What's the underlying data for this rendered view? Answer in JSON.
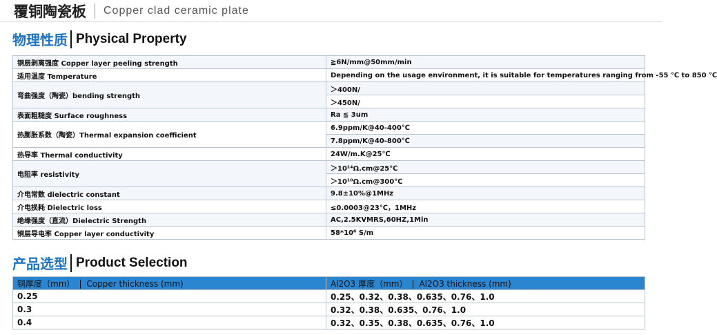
{
  "header": {
    "title_cn": "覆铜陶瓷板",
    "title_en": "Copper clad ceramic plate"
  },
  "physical": {
    "title_cn": "物理性质",
    "title_en": "Physical Property",
    "rows": [
      {
        "label": "铜层剥离强度 Copper layer peeling strength",
        "values": [
          "≧6N/mm@50mm/min"
        ]
      },
      {
        "label": "适用温度 Temperature",
        "values": [
          "Depending on the usage environment, it is suitable for temperatures ranging from -55 ℃ to 850 ℃"
        ]
      },
      {
        "label": "弯曲强度（陶瓷）bending strength",
        "values": [
          "＞400N/",
          "＞450N/"
        ]
      },
      {
        "label": "表面粗糙度 Surface roughness",
        "values": [
          "Ra ≦ 3um"
        ]
      },
      {
        "label": "热膨胀系数（陶瓷）Thermal expansion coefficient",
        "values": [
          "6.9ppm/K@40-400℃",
          "7.8ppm/K@40-800℃"
        ]
      },
      {
        "label": "热导率 Thermal conductivity",
        "values": [
          "24W/m.K@25℃"
        ]
      },
      {
        "label": "电阻率 resistivity",
        "values": [
          "＞10¹⁴Ω.cm@25℃",
          "＞10¹⁰Ω.cm@300℃"
        ]
      },
      {
        "label": "介电常数 dielectric constant",
        "values": [
          "9.8±10%@1MHz"
        ]
      },
      {
        "label": "介电损耗 Dielectric loss",
        "values": [
          "≤0.0003@23℃，1MHz"
        ]
      },
      {
        "label": "绝缘强度（直流）Dielectric Strength",
        "values": [
          "AC,2.5KVMRS,60HZ,1Min"
        ]
      },
      {
        "label": "铜层导电率 Copper layer conductivity",
        "values": [
          "58*10⁶ S/m"
        ]
      }
    ]
  },
  "selection": {
    "title_cn": "产品选型",
    "title_en": "Product Selection",
    "columns": [
      {
        "cn": "铜厚度（mm）",
        "en": "Copper thickness (mm)"
      },
      {
        "cn": "Al2O3 厚度（mm）",
        "en": "Al2O3 thickness (mm)"
      }
    ],
    "rows": [
      [
        "0.25",
        "0.25、0.32、0.38、0.635、0.76、1.0"
      ],
      [
        "0.3",
        "0.32、0.38、0.635、0.76、1.0"
      ],
      [
        "0.4",
        "0.32、0.35、0.38、0.635、0.76、1.0"
      ]
    ]
  }
}
